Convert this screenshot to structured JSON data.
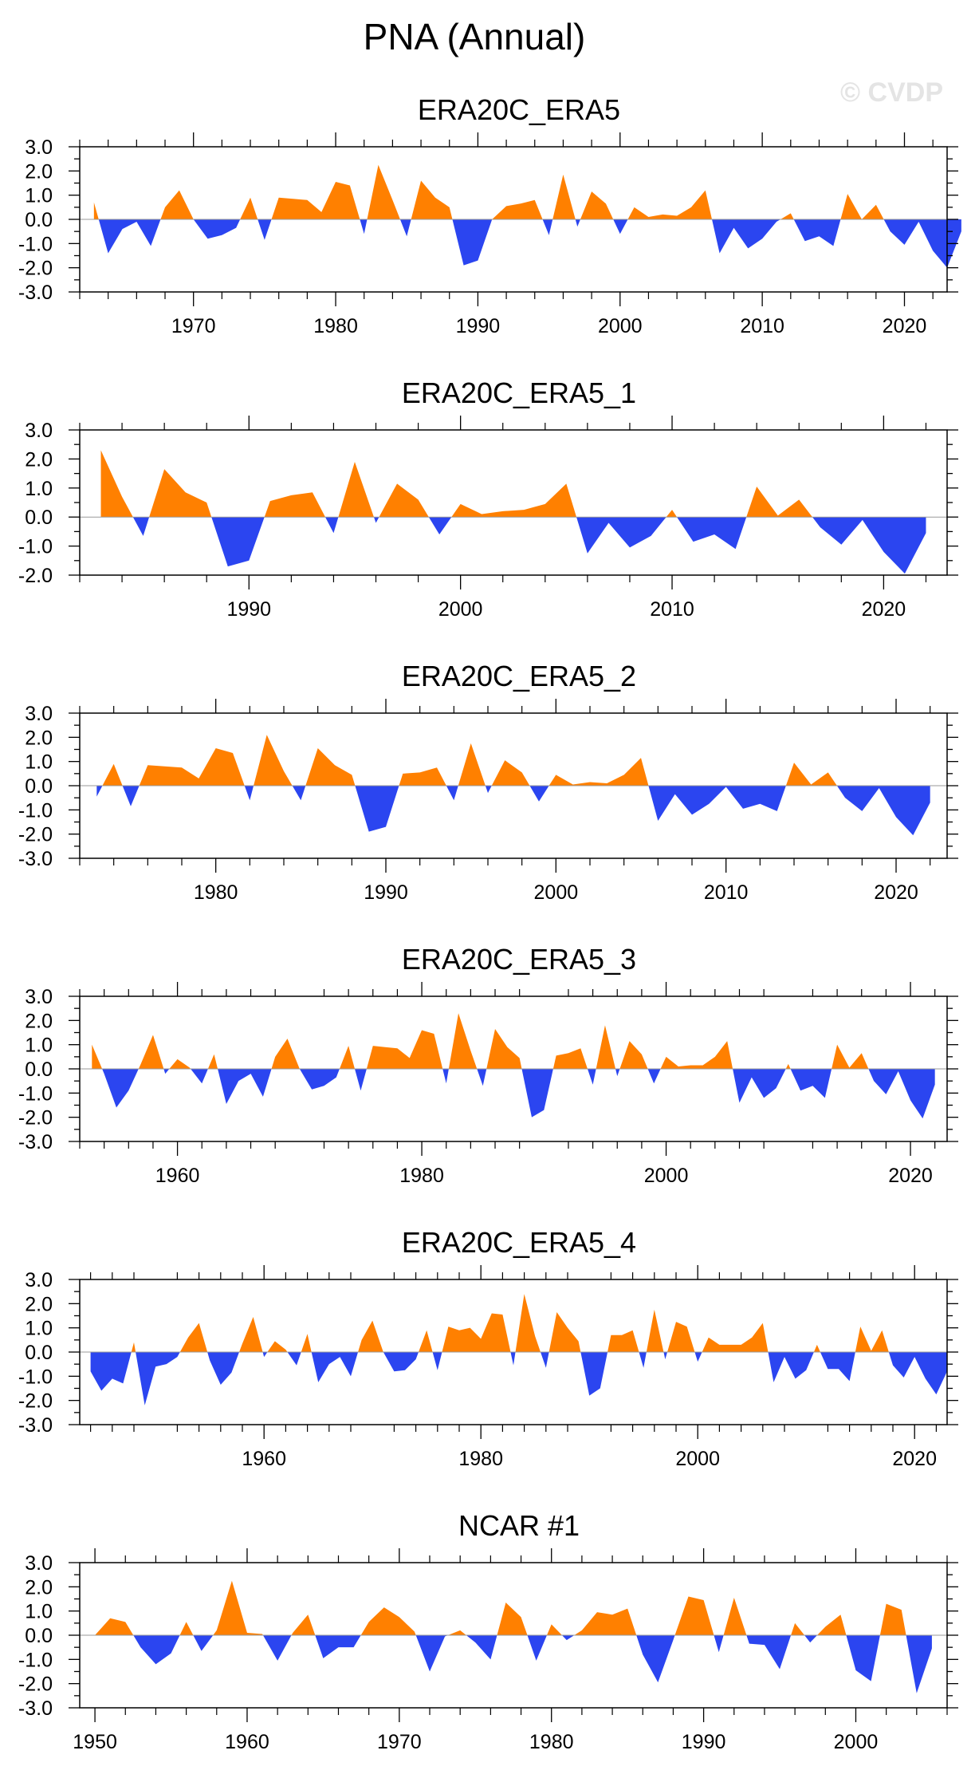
{
  "figure": {
    "title": "PNA (Annual)",
    "watermark": "© CVDP"
  },
  "colors": {
    "positive": "#ff8000",
    "negative": "#2b45f0",
    "axis": "#000000",
    "background": "#ffffff"
  },
  "chart_data": [
    {
      "type": "area",
      "title": "ERA20C_ERA5",
      "x_start": 1963,
      "xlim": [
        1962,
        2023
      ],
      "ylim": [
        -3,
        3
      ],
      "y_ticks": [
        "3.0",
        "2.0",
        "1.0",
        "0.0",
        "-1.0",
        "-2.0",
        "-3.0"
      ],
      "x_ticks": [
        1970,
        1980,
        1990,
        2000,
        2010,
        2020
      ],
      "values": [
        0.7,
        -1.4,
        -0.4,
        -0.1,
        -1.1,
        0.5,
        1.2,
        0.0,
        -0.8,
        -0.65,
        -0.35,
        0.9,
        -0.85,
        0.9,
        0.85,
        0.8,
        0.3,
        1.55,
        1.4,
        -0.6,
        2.25,
        0.8,
        -0.7,
        1.6,
        0.9,
        0.5,
        -1.9,
        -1.7,
        0.0,
        0.55,
        0.65,
        0.8,
        -0.65,
        1.85,
        -0.3,
        1.15,
        0.65,
        -0.6,
        0.5,
        0.1,
        0.2,
        0.15,
        0.5,
        1.2,
        -1.4,
        -0.35,
        -1.2,
        -0.8,
        -0.1,
        0.25,
        -0.9,
        -0.7,
        -1.1,
        1.05,
        0.0,
        0.6,
        -0.5,
        -1.05,
        -0.1,
        -1.3,
        -2.0,
        -0.5
      ]
    },
    {
      "type": "area",
      "title": "ERA20C_ERA5_1",
      "x_start": 1983,
      "xlim": [
        1982,
        2023
      ],
      "ylim": [
        -2,
        3
      ],
      "y_ticks": [
        "3.0",
        "2.0",
        "1.0",
        "0.0",
        "-1.0",
        "-2.0"
      ],
      "x_ticks": [
        1990,
        2000,
        2010,
        2020
      ],
      "values": [
        2.3,
        0.7,
        -0.65,
        1.65,
        0.85,
        0.5,
        -1.7,
        -1.5,
        0.55,
        0.75,
        0.85,
        -0.55,
        1.9,
        -0.2,
        1.15,
        0.6,
        -0.6,
        0.45,
        0.1,
        0.2,
        0.25,
        0.45,
        1.15,
        -1.25,
        -0.2,
        -1.05,
        -0.65,
        0.25,
        -0.85,
        -0.6,
        -1.1,
        1.05,
        0.05,
        0.6,
        -0.35,
        -0.95,
        -0.1,
        -1.2,
        -1.95,
        -0.55
      ]
    },
    {
      "type": "area",
      "title": "ERA20C_ERA5_2",
      "x_start": 1973,
      "xlim": [
        1972,
        2023
      ],
      "ylim": [
        -3,
        3
      ],
      "y_ticks": [
        "3.0",
        "2.0",
        "1.0",
        "0.0",
        "-1.0",
        "-2.0",
        "-3.0"
      ],
      "x_ticks": [
        1980,
        1990,
        2000,
        2010,
        2020
      ],
      "values": [
        -0.45,
        0.9,
        -0.85,
        0.85,
        0.8,
        0.75,
        0.3,
        1.55,
        1.35,
        -0.6,
        2.1,
        0.6,
        -0.6,
        1.55,
        0.85,
        0.45,
        -1.9,
        -1.7,
        0.5,
        0.55,
        0.75,
        -0.6,
        1.75,
        -0.3,
        1.05,
        0.55,
        -0.65,
        0.45,
        0.05,
        0.15,
        0.1,
        0.45,
        1.15,
        -1.45,
        -0.35,
        -1.2,
        -0.75,
        -0.05,
        -0.95,
        -0.75,
        -1.05,
        0.95,
        0.05,
        0.55,
        -0.5,
        -1.05,
        -0.1,
        -1.3,
        -2.05,
        -0.7
      ]
    },
    {
      "type": "area",
      "title": "ERA20C_ERA5_3",
      "x_start": 1953,
      "xlim": [
        1952,
        2023
      ],
      "ylim": [
        -3,
        3
      ],
      "y_ticks": [
        "3.0",
        "2.0",
        "1.0",
        "0.0",
        "-1.0",
        "-2.0",
        "-3.0"
      ],
      "x_ticks": [
        1960,
        1980,
        2000,
        2020
      ],
      "values": [
        1.0,
        -0.2,
        -1.6,
        -0.9,
        0.2,
        1.4,
        -0.2,
        0.4,
        0.05,
        -0.6,
        0.6,
        -1.45,
        -0.5,
        -0.2,
        -1.15,
        0.5,
        1.25,
        0.0,
        -0.85,
        -0.7,
        -0.35,
        0.95,
        -0.9,
        0.95,
        0.9,
        0.85,
        0.45,
        1.6,
        1.45,
        -0.6,
        2.3,
        0.75,
        -0.7,
        1.65,
        0.9,
        0.45,
        -2.0,
        -1.7,
        0.55,
        0.65,
        0.85,
        -0.65,
        1.8,
        -0.3,
        1.15,
        0.6,
        -0.6,
        0.5,
        0.1,
        0.15,
        0.15,
        0.5,
        1.15,
        -1.4,
        -0.35,
        -1.2,
        -0.8,
        0.2,
        -0.9,
        -0.7,
        -1.2,
        1.0,
        0.05,
        0.65,
        -0.5,
        -1.05,
        -0.1,
        -1.3,
        -2.05,
        -0.65
      ]
    },
    {
      "type": "area",
      "title": "ERA20C_ERA5_4",
      "x_start": 1944,
      "xlim": [
        1943,
        2023
      ],
      "ylim": [
        -3,
        3
      ],
      "y_ticks": [
        "3.0",
        "2.0",
        "1.0",
        "0.0",
        "-1.0",
        "-2.0",
        "-3.0"
      ],
      "x_ticks": [
        1960,
        1980,
        2000,
        2020
      ],
      "values": [
        -0.8,
        -1.6,
        -1.1,
        -1.3,
        0.4,
        -2.2,
        -0.6,
        -0.5,
        -0.2,
        0.6,
        1.2,
        -0.35,
        -1.35,
        -0.85,
        0.35,
        1.45,
        -0.2,
        0.45,
        0.1,
        -0.55,
        0.75,
        -1.25,
        -0.5,
        -0.2,
        -1.0,
        0.5,
        1.3,
        0.0,
        -0.8,
        -0.75,
        -0.3,
        0.9,
        -0.75,
        1.05,
        0.9,
        1.0,
        0.55,
        1.6,
        1.55,
        -0.55,
        2.4,
        0.65,
        -0.65,
        1.65,
        1.0,
        0.45,
        -1.8,
        -1.5,
        0.7,
        0.7,
        0.9,
        -0.65,
        1.75,
        -0.3,
        1.25,
        1.05,
        -0.4,
        0.6,
        0.3,
        0.3,
        0.3,
        0.6,
        1.2,
        -1.25,
        -0.2,
        -1.1,
        -0.75,
        0.3,
        -0.7,
        -0.7,
        -1.2,
        1.05,
        0.05,
        0.9,
        -0.55,
        -1.05,
        -0.2,
        -1.1,
        -1.75,
        -0.8
      ]
    },
    {
      "type": "area",
      "title": "NCAR #1",
      "x_start": 1950,
      "xlim": [
        1949,
        2006
      ],
      "ylim": [
        -3,
        3
      ],
      "y_ticks": [
        "3.0",
        "2.0",
        "1.0",
        "0.0",
        "-1.0",
        "-2.0",
        "-3.0"
      ],
      "x_ticks": [
        1950,
        1960,
        1970,
        1980,
        1990,
        2000
      ],
      "values": [
        0.0,
        0.7,
        0.55,
        -0.5,
        -1.2,
        -0.75,
        0.55,
        -0.65,
        0.2,
        2.25,
        0.1,
        0.05,
        -1.05,
        0.1,
        0.85,
        -0.95,
        -0.5,
        -0.5,
        0.55,
        1.15,
        0.75,
        0.15,
        -1.5,
        -0.05,
        0.2,
        -0.3,
        -1.0,
        1.35,
        0.75,
        -1.05,
        0.45,
        -0.2,
        0.2,
        0.95,
        0.85,
        1.1,
        -0.8,
        -1.95,
        -0.2,
        1.6,
        1.45,
        -0.7,
        1.55,
        -0.35,
        -0.4,
        -1.4,
        0.5,
        -0.3,
        0.35,
        0.85,
        -1.45,
        -1.9,
        1.3,
        1.05,
        -2.4,
        -0.55
      ]
    }
  ]
}
